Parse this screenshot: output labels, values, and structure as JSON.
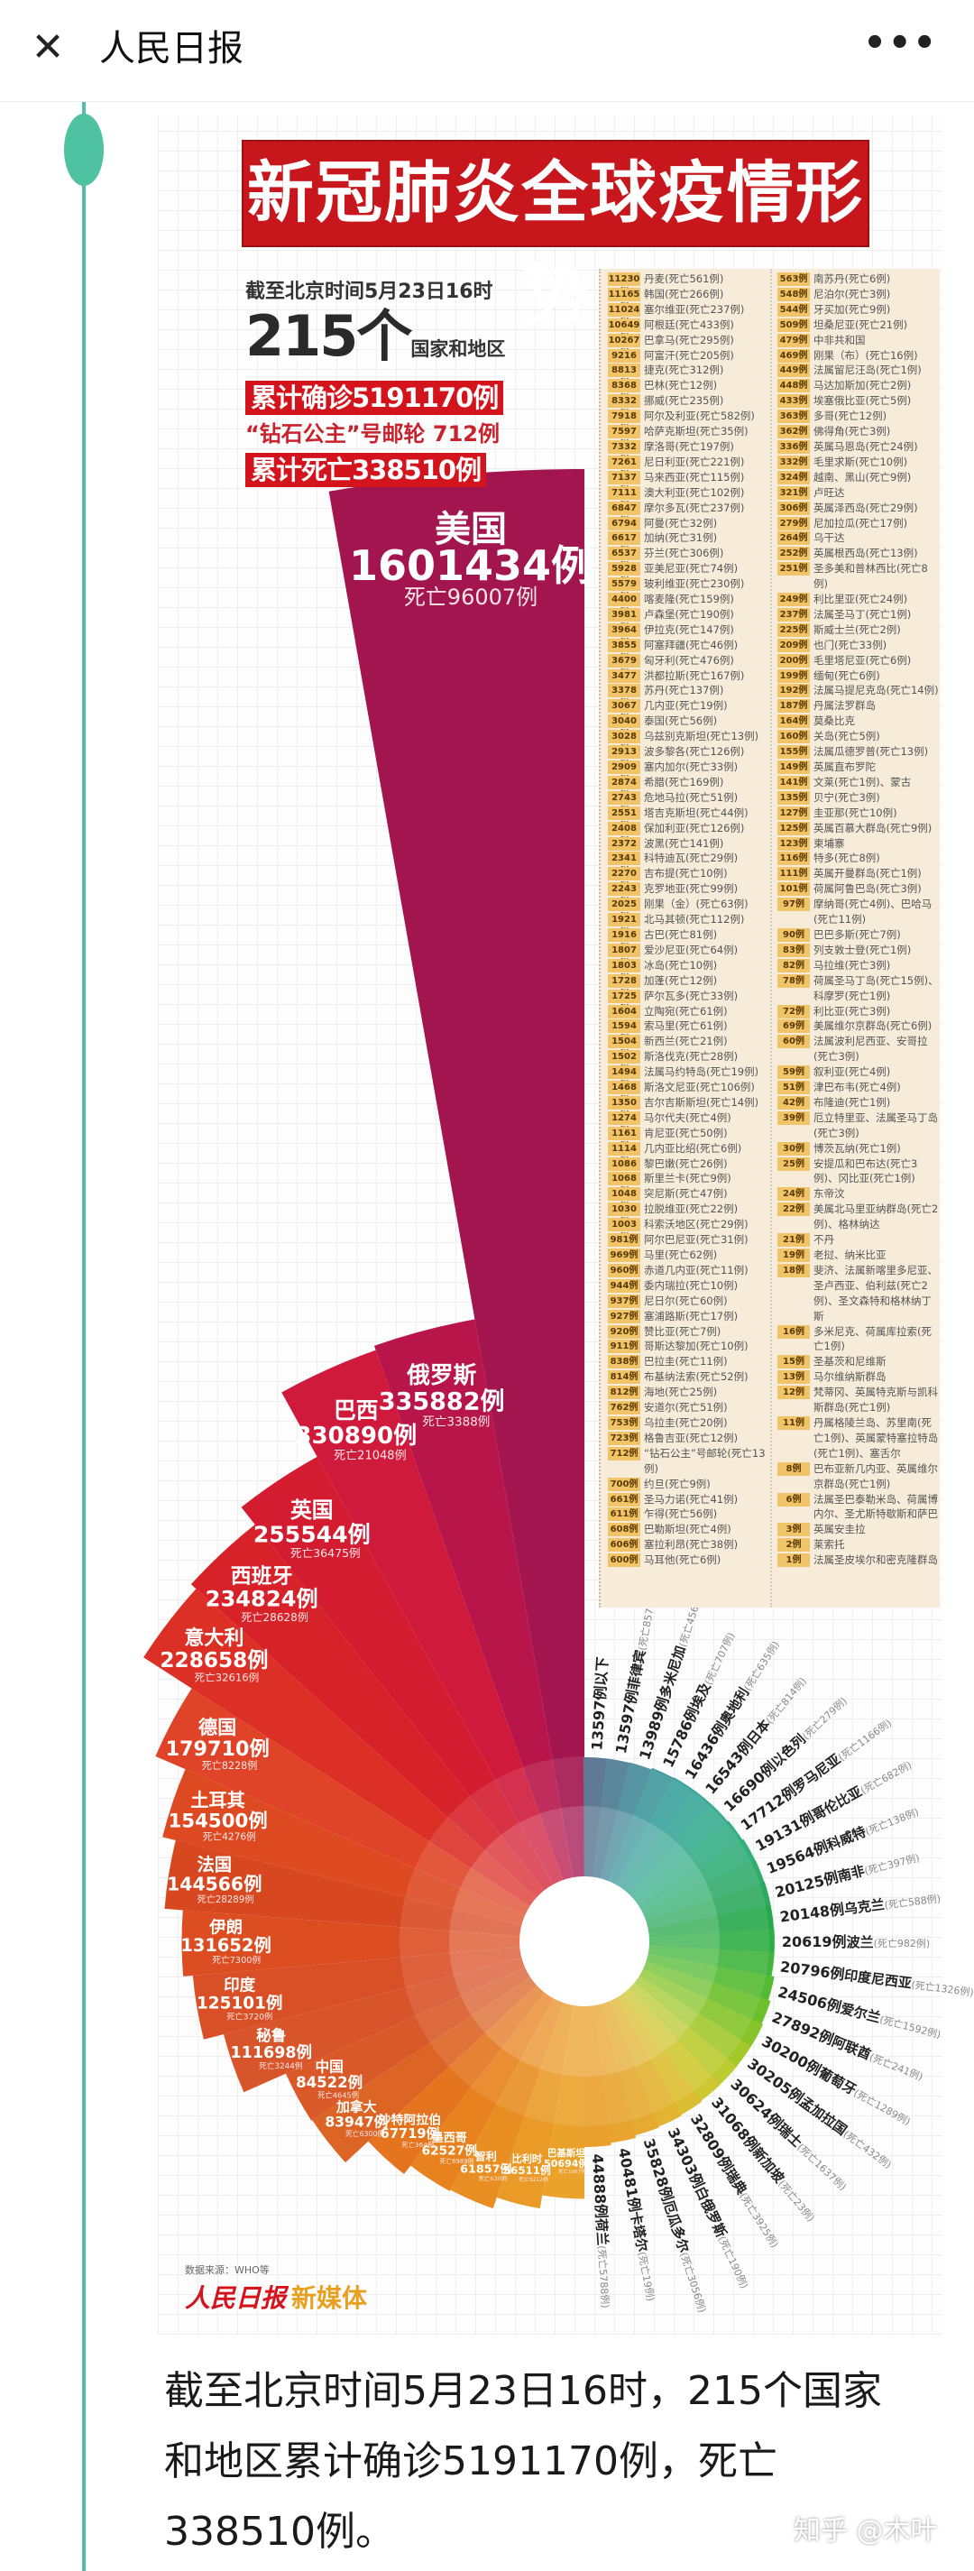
{
  "header": {
    "close_icon": "close-icon",
    "title": "人民日报",
    "more_icon": "more-icon",
    "more_label": "•••"
  },
  "infographic": {
    "title": "新冠肺炎全球疫情形势",
    "as_of": "截至北京时间5月23日16时",
    "country_count": "215个",
    "country_unit": "国家和地区",
    "confirmed": "累计确诊5191170例",
    "cruise": "“钻石公主”号邮轮 712例",
    "deaths": "累计死亡338510例",
    "source": "数据来源：WHO等",
    "logo_main": "人民日报",
    "logo_sub": "新媒体"
  },
  "table": {
    "left": [
      {
        "n": "11230例",
        "t": "丹麦(死亡561例)"
      },
      {
        "n": "11165例",
        "t": "韩国(死亡266例)"
      },
      {
        "n": "11024例",
        "t": "塞尔维亚(死亡237例)"
      },
      {
        "n": "10649例",
        "t": "阿根廷(死亡433例)"
      },
      {
        "n": "10267例",
        "t": "巴拿马(死亡295例)"
      },
      {
        "n": "9216例",
        "t": "阿富汗(死亡205例)"
      },
      {
        "n": "8813例",
        "t": "捷克(死亡312例)"
      },
      {
        "n": "8368例",
        "t": "巴林(死亡12例)"
      },
      {
        "n": "8332例",
        "t": "挪威(死亡235例)"
      },
      {
        "n": "7918例",
        "t": "阿尔及利亚(死亡582例)"
      },
      {
        "n": "7597例",
        "t": "哈萨克斯坦(死亡35例)"
      },
      {
        "n": "7332例",
        "t": "摩洛哥(死亡197例)"
      },
      {
        "n": "7261例",
        "t": "尼日利亚(死亡221例)"
      },
      {
        "n": "7137例",
        "t": "马来西亚(死亡115例)"
      },
      {
        "n": "7111例",
        "t": "澳大利亚(死亡102例)"
      },
      {
        "n": "6847例",
        "t": "摩尔多瓦(死亡237例)"
      },
      {
        "n": "6794例",
        "t": "阿曼(死亡32例)"
      },
      {
        "n": "6617例",
        "t": "加纳(死亡31例)"
      },
      {
        "n": "6537例",
        "t": "芬兰(死亡306例)"
      },
      {
        "n": "5928例",
        "t": "亚美尼亚(死亡74例)"
      },
      {
        "n": "5579例",
        "t": "玻利维亚(死亡230例)"
      },
      {
        "n": "4400例",
        "t": "喀麦隆(死亡159例)"
      },
      {
        "n": "3981例",
        "t": "卢森堡(死亡190例)"
      },
      {
        "n": "3964例",
        "t": "伊拉克(死亡147例)"
      },
      {
        "n": "3855例",
        "t": "阿塞拜疆(死亡46例)"
      },
      {
        "n": "3679例",
        "t": "匈牙利(死亡476例)"
      },
      {
        "n": "3477例",
        "t": "洪都拉斯(死亡167例)"
      },
      {
        "n": "3378例",
        "t": "苏丹(死亡137例)"
      },
      {
        "n": "3067例",
        "t": "几内亚(死亡19例)"
      },
      {
        "n": "3040例",
        "t": "泰国(死亡56例)"
      },
      {
        "n": "3028例",
        "t": "乌兹别克斯坦(死亡13例)"
      },
      {
        "n": "2913例",
        "t": "波多黎各(死亡126例)"
      },
      {
        "n": "2909例",
        "t": "塞内加尔(死亡33例)"
      },
      {
        "n": "2874例",
        "t": "希腊(死亡169例)"
      },
      {
        "n": "2743例",
        "t": "危地马拉(死亡51例)"
      },
      {
        "n": "2551例",
        "t": "塔吉克斯坦(死亡44例)"
      },
      {
        "n": "2408例",
        "t": "保加利亚(死亡126例)"
      },
      {
        "n": "2372例",
        "t": "波黑(死亡141例)"
      },
      {
        "n": "2341例",
        "t": "科特迪瓦(死亡29例)"
      },
      {
        "n": "2270例",
        "t": "吉布提(死亡10例)"
      },
      {
        "n": "2243例",
        "t": "克罗地亚(死亡99例)"
      },
      {
        "n": "2025例",
        "t": "刚果（金）(死亡63例)"
      },
      {
        "n": "1921例",
        "t": "北马其顿(死亡112例)"
      },
      {
        "n": "1916例",
        "t": "古巴(死亡81例)"
      },
      {
        "n": "1807例",
        "t": "爱沙尼亚(死亡64例)"
      },
      {
        "n": "1803例",
        "t": "冰岛(死亡10例)"
      },
      {
        "n": "1728例",
        "t": "加蓬(死亡12例)"
      },
      {
        "n": "1725例",
        "t": "萨尔瓦多(死亡33例)"
      },
      {
        "n": "1604例",
        "t": "立陶宛(死亡61例)"
      },
      {
        "n": "1594例",
        "t": "索马里(死亡61例)"
      },
      {
        "n": "1504例",
        "t": "新西兰(死亡21例)"
      },
      {
        "n": "1502例",
        "t": "斯洛伐克(死亡28例)"
      },
      {
        "n": "1494例",
        "t": "法属马约特岛(死亡19例)"
      },
      {
        "n": "1468例",
        "t": "斯洛文尼亚(死亡106例)"
      },
      {
        "n": "1350例",
        "t": "吉尔吉斯斯坦(死亡14例)"
      },
      {
        "n": "1274例",
        "t": "马尔代夫(死亡4例)"
      },
      {
        "n": "1161例",
        "t": "肯尼亚(死亡50例)"
      },
      {
        "n": "1114例",
        "t": "几内亚比绍(死亡6例)"
      },
      {
        "n": "1086例",
        "t": "黎巴嫩(死亡26例)"
      },
      {
        "n": "1068例",
        "t": "斯里兰卡(死亡9例)"
      },
      {
        "n": "1048例",
        "t": "突尼斯(死亡47例)"
      },
      {
        "n": "1030例",
        "t": "拉脱维亚(死亡22例)"
      },
      {
        "n": "1003例",
        "t": "科索沃地区(死亡29例)"
      },
      {
        "n": "981例",
        "t": "阿尔巴尼亚(死亡31例)"
      },
      {
        "n": "969例",
        "t": "马里(死亡62例)"
      },
      {
        "n": "960例",
        "t": "赤道几内亚(死亡11例)"
      },
      {
        "n": "944例",
        "t": "委内瑞拉(死亡10例)"
      },
      {
        "n": "937例",
        "t": "尼日尔(死亡60例)"
      },
      {
        "n": "927例",
        "t": "塞浦路斯(死亡17例)"
      },
      {
        "n": "920例",
        "t": "赞比亚(死亡7例)"
      },
      {
        "n": "911例",
        "t": "哥斯达黎加(死亡10例)"
      },
      {
        "n": "838例",
        "t": "巴拉圭(死亡11例)"
      },
      {
        "n": "814例",
        "t": "布基纳法索(死亡52例)"
      },
      {
        "n": "812例",
        "t": "海地(死亡25例)"
      },
      {
        "n": "762例",
        "t": "安道尔(死亡51例)"
      },
      {
        "n": "753例",
        "t": "乌拉圭(死亡20例)"
      },
      {
        "n": "723例",
        "t": "格鲁吉亚(死亡12例)"
      },
      {
        "n": "712例",
        "t": "“钻石公主”号邮轮(死亡13例)"
      },
      {
        "n": "700例",
        "t": "约旦(死亡9例)"
      },
      {
        "n": "661例",
        "t": "圣马力诺(死亡41例)"
      },
      {
        "n": "611例",
        "t": "乍得(死亡56例)"
      },
      {
        "n": "608例",
        "t": "巴勒斯坦(死亡4例)"
      },
      {
        "n": "606例",
        "t": "塞拉利昂(死亡38例)"
      },
      {
        "n": "600例",
        "t": "马耳他(死亡6例)"
      }
    ],
    "right": [
      {
        "n": "563例",
        "t": "南苏丹(死亡6例)"
      },
      {
        "n": "548例",
        "t": "尼泊尔(死亡3例)"
      },
      {
        "n": "544例",
        "t": "牙买加(死亡9例)"
      },
      {
        "n": "509例",
        "t": "坦桑尼亚(死亡21例)"
      },
      {
        "n": "479例",
        "t": "中非共和国"
      },
      {
        "n": "469例",
        "t": "刚果（布）(死亡16例)"
      },
      {
        "n": "449例",
        "t": "法属留尼汪岛(死亡1例)"
      },
      {
        "n": "448例",
        "t": "马达加斯加(死亡2例)"
      },
      {
        "n": "433例",
        "t": "埃塞俄比亚(死亡5例)"
      },
      {
        "n": "363例",
        "t": "多哥(死亡12例)"
      },
      {
        "n": "362例",
        "t": "佛得角(死亡3例)"
      },
      {
        "n": "336例",
        "t": "英属马恩岛(死亡24例)"
      },
      {
        "n": "332例",
        "t": "毛里求斯(死亡10例)"
      },
      {
        "n": "324例",
        "t": "越南、黑山(死亡9例)"
      },
      {
        "n": "321例",
        "t": "卢旺达"
      },
      {
        "n": "306例",
        "t": "英属泽西岛(死亡29例)"
      },
      {
        "n": "279例",
        "t": "尼加拉瓜(死亡17例)"
      },
      {
        "n": "264例",
        "t": "乌干达"
      },
      {
        "n": "252例",
        "t": "英属根西岛(死亡13例)"
      },
      {
        "n": "251例",
        "t": "圣多美和普林西比(死亡8例)"
      },
      {
        "n": "249例",
        "t": "利比里亚(死亡24例)"
      },
      {
        "n": "237例",
        "t": "法属圣马丁(死亡1例)"
      },
      {
        "n": "225例",
        "t": "斯威士兰(死亡2例)"
      },
      {
        "n": "209例",
        "t": "也门(死亡33例)"
      },
      {
        "n": "200例",
        "t": "毛里塔尼亚(死亡6例)"
      },
      {
        "n": "199例",
        "t": "缅甸(死亡6例)"
      },
      {
        "n": "192例",
        "t": "法属马提尼克岛(死亡14例)"
      },
      {
        "n": "187例",
        "t": "丹属法罗群岛"
      },
      {
        "n": "164例",
        "t": "莫桑比克"
      },
      {
        "n": "160例",
        "t": "关岛(死亡5例)"
      },
      {
        "n": "155例",
        "t": "法属瓜德罗普(死亡13例)"
      },
      {
        "n": "149例",
        "t": "英属直布罗陀"
      },
      {
        "n": "141例",
        "t": "文莱(死亡1例)、蒙古"
      },
      {
        "n": "135例",
        "t": "贝宁(死亡3例)"
      },
      {
        "n": "127例",
        "t": "圭亚那(死亡10例)"
      },
      {
        "n": "125例",
        "t": "英属百慕大群岛(死亡9例)"
      },
      {
        "n": "123例",
        "t": "柬埔寨"
      },
      {
        "n": "116例",
        "t": "特多(死亡8例)"
      },
      {
        "n": "111例",
        "t": "英属开曼群岛(死亡1例)"
      },
      {
        "n": "101例",
        "t": "荷属阿鲁巴岛(死亡3例)"
      },
      {
        "n": "97例",
        "t": "摩纳哥(死亡4例)、巴哈马(死亡11例)"
      },
      {
        "n": "90例",
        "t": "巴巴多斯(死亡7例)"
      },
      {
        "n": "83例",
        "t": "列支敦士登(死亡1例)"
      },
      {
        "n": "82例",
        "t": "马拉维(死亡3例)"
      },
      {
        "n": "78例",
        "t": "荷属圣马丁岛(死亡15例)、科摩罗(死亡1例)"
      },
      {
        "n": "72例",
        "t": "利比亚(死亡3例)"
      },
      {
        "n": "69例",
        "t": "美属维尔京群岛(死亡6例)"
      },
      {
        "n": "60例",
        "t": "法属波利尼西亚、安哥拉(死亡3例)"
      },
      {
        "n": "59例",
        "t": "叙利亚(死亡4例)"
      },
      {
        "n": "51例",
        "t": "津巴布韦(死亡4例)"
      },
      {
        "n": "42例",
        "t": "布隆迪(死亡1例)"
      },
      {
        "n": "39例",
        "t": "厄立特里亚、法属圣马丁岛(死亡3例)"
      },
      {
        "n": "30例",
        "t": "博茨瓦纳(死亡1例)"
      },
      {
        "n": "25例",
        "t": "安提瓜和巴布达(死亡3例)、冈比亚(死亡1例)"
      },
      {
        "n": "24例",
        "t": "东帝汶"
      },
      {
        "n": "22例",
        "t": "美属北马里亚纳群岛(死亡2例)、格林纳达"
      },
      {
        "n": "21例",
        "t": "不丹"
      },
      {
        "n": "19例",
        "t": "老挝、纳米比亚"
      },
      {
        "n": "18例",
        "t": "斐济、法属新喀里多尼亚、圣卢西亚、伯利兹(死亡2例)、圣文森特和格林纳丁斯"
      },
      {
        "n": "16例",
        "t": "多米尼克、荷属库拉索(死亡1例)"
      },
      {
        "n": "15例",
        "t": "圣基茨和尼维斯"
      },
      {
        "n": "13例",
        "t": "马尔维纳斯群岛"
      },
      {
        "n": "12例",
        "t": "梵蒂冈、英属特克斯与凯科斯群岛(死亡1例)"
      },
      {
        "n": "11例",
        "t": "丹属格陵兰岛、苏里南(死亡1例)、英属蒙特塞拉特岛(死亡1例)、塞舌尔"
      },
      {
        "n": "8例",
        "t": "巴布亚新几内亚、英属维尔京群岛(死亡1例)"
      },
      {
        "n": "6例",
        "t": "法属圣巴泰勒米岛、荷属博内尔、圣尤斯特歇斯和萨巴"
      },
      {
        "n": "3例",
        "t": "英属安圭拉"
      },
      {
        "n": "2例",
        "t": "莱索托"
      },
      {
        "n": "1例",
        "t": "法属圣皮埃尔和密克隆群岛"
      }
    ]
  },
  "wheel": {
    "left": [
      {
        "name": "美国",
        "cases": "1601434例",
        "deaths": "死亡96007例",
        "value": 1601434,
        "color": "#a3154f"
      },
      {
        "name": "俄罗斯",
        "cases": "335882例",
        "deaths": "死亡3388例",
        "value": 335882,
        "color": "#b8164a"
      },
      {
        "name": "巴西",
        "cases": "330890例",
        "deaths": "死亡21048例",
        "value": 330890,
        "color": "#d01a3c"
      },
      {
        "name": "英国",
        "cases": "255544例",
        "deaths": "死亡36475例",
        "value": 255544,
        "color": "#d41c30"
      },
      {
        "name": "西班牙",
        "cases": "234824例",
        "deaths": "死亡28628例",
        "value": 234824,
        "color": "#d8222a"
      },
      {
        "name": "意大利",
        "cases": "228658例",
        "deaths": "死亡32616例",
        "value": 228658,
        "color": "#dc3026"
      },
      {
        "name": "德国",
        "cases": "179710例",
        "deaths": "死亡8228例",
        "value": 179710,
        "color": "#e04428"
      },
      {
        "name": "土耳其",
        "cases": "154500例",
        "deaths": "死亡4276例",
        "value": 154500,
        "color": "#dd4a22"
      },
      {
        "name": "法国",
        "cases": "144566例",
        "deaths": "死亡28289例",
        "value": 144566,
        "color": "#d84820"
      },
      {
        "name": "伊朗",
        "cases": "131652例",
        "deaths": "死亡7300例",
        "value": 131652,
        "color": "#dc4e22"
      },
      {
        "name": "印度",
        "cases": "125101例",
        "deaths": "死亡3720例",
        "value": 125101,
        "color": "#da5026"
      },
      {
        "name": "秘鲁",
        "cases": "111698例",
        "deaths": "死亡3244例",
        "value": 111698,
        "color": "#d8542a"
      },
      {
        "name": "中国",
        "cases": "84522例",
        "deaths": "死亡4645例",
        "value": 84522,
        "color": "#d95a28"
      },
      {
        "name": "加拿大",
        "cases": "83947例",
        "deaths": "死亡6300例",
        "value": 83947,
        "color": "#dc6424"
      },
      {
        "name": "沙特阿拉伯",
        "cases": "67719例",
        "deaths": "死亡364例",
        "value": 67719,
        "color": "#e4741e"
      },
      {
        "name": "墨西哥",
        "cases": "62527例",
        "deaths": "死亡6989例",
        "value": 62527,
        "color": "#e8821e"
      },
      {
        "name": "智利",
        "cases": "61857例",
        "deaths": "死亡630例",
        "value": 61857,
        "color": "#e88e22"
      },
      {
        "name": "比利时",
        "cases": "56511例",
        "deaths": "死亡9212例",
        "value": 56511,
        "color": "#ea9a26"
      },
      {
        "name": "巴基斯坦",
        "cases": "50694例",
        "deaths": "死亡1067例",
        "value": 50694,
        "color": "#eaa22a"
      }
    ],
    "right": [
      {
        "name": "",
        "cases": "13597例以下",
        "deaths": "",
        "value": 13597,
        "color": "#4d6b8a"
      },
      {
        "name": "菲律宾",
        "cases": "13597例",
        "deaths": "(死亡857例)",
        "value": 13597,
        "color": "#4a7a90"
      },
      {
        "name": "多米尼加",
        "cases": "13989例",
        "deaths": "(死亡456例)",
        "value": 13989,
        "color": "#458a98"
      },
      {
        "name": "埃及",
        "cases": "15786例",
        "deaths": "(死亡707例)",
        "value": 15786,
        "color": "#3f989c"
      },
      {
        "name": "奥地利",
        "cases": "16436例",
        "deaths": "(死亡635例)",
        "value": 16436,
        "color": "#3ca29c"
      },
      {
        "name": "日本",
        "cases": "16543例",
        "deaths": "(死亡814例)",
        "value": 16543,
        "color": "#3aa898"
      },
      {
        "name": "以色列",
        "cases": "16690例",
        "deaths": "(死亡279例)",
        "value": 16690,
        "color": "#38ac90"
      },
      {
        "name": "罗马尼亚",
        "cases": "17712例",
        "deaths": "(死亡1166例)",
        "value": 17712,
        "color": "#36ae86"
      },
      {
        "name": "哥伦比亚",
        "cases": "19131例",
        "deaths": "(死亡682例)",
        "value": 19131,
        "color": "#34ae7a"
      },
      {
        "name": "科威特",
        "cases": "19564例",
        "deaths": "(死亡138例)",
        "value": 19564,
        "color": "#32ac6c"
      },
      {
        "name": "南非",
        "cases": "20125例",
        "deaths": "(死亡397例)",
        "value": 20125,
        "color": "#2eaa5e"
      },
      {
        "name": "乌克兰",
        "cases": "20148例",
        "deaths": "(死亡588例)",
        "value": 20148,
        "color": "#26a84a"
      },
      {
        "name": "波兰",
        "cases": "20619例",
        "deaths": "(死亡982例)",
        "value": 20619,
        "color": "#2fae44"
      },
      {
        "name": "印度尼西亚",
        "cases": "20796例",
        "deaths": "(死亡1326例)",
        "value": 20796,
        "color": "#40b43c"
      },
      {
        "name": "爱尔兰",
        "cases": "24506例",
        "deaths": "(死亡1592例)",
        "value": 24506,
        "color": "#54ba34"
      },
      {
        "name": "阿联酋",
        "cases": "27892例",
        "deaths": "(死亡241例)",
        "value": 27892,
        "color": "#6cc02c"
      },
      {
        "name": "葡萄牙",
        "cases": "30200例",
        "deaths": "(死亡1289例)",
        "value": 30200,
        "color": "#86c42a"
      },
      {
        "name": "孟加拉国",
        "cases": "30205例",
        "deaths": "(死亡432例)",
        "value": 30205,
        "color": "#a2c82c"
      },
      {
        "name": "瑞士",
        "cases": "30624例",
        "deaths": "(死亡1637例)",
        "value": 30624,
        "color": "#bccb30"
      },
      {
        "name": "新加坡",
        "cases": "31068例",
        "deaths": "(死亡23例)",
        "value": 31068,
        "color": "#d0c832"
      },
      {
        "name": "瑞典",
        "cases": "32809例",
        "deaths": "(死亡3925例)",
        "value": 32809,
        "color": "#dcbe32"
      },
      {
        "name": "白俄罗斯",
        "cases": "34303例",
        "deaths": "(死亡190例)",
        "value": 34303,
        "color": "#e2b432"
      },
      {
        "name": "厄瓜多尔",
        "cases": "35828例",
        "deaths": "(死亡3056例)",
        "value": 35828,
        "color": "#e6aa30"
      },
      {
        "name": "卡塔尔",
        "cases": "40481例",
        "deaths": "(死亡19例)",
        "value": 40481,
        "color": "#e8a42e"
      },
      {
        "name": "荷兰",
        "cases": "44888例",
        "deaths": "(死亡5788例)",
        "value": 44888,
        "color": "#eaa02c"
      }
    ]
  },
  "caption": "截至北京时间5月23日16时，215个国家和地区累计确诊5191170例，死亡338510例。",
  "watermark": "知乎 @木叶",
  "colors": {
    "accent_green": "#4fc3a1",
    "banner_red": "#c8161d",
    "table_bg": "#f7ecd9"
  }
}
